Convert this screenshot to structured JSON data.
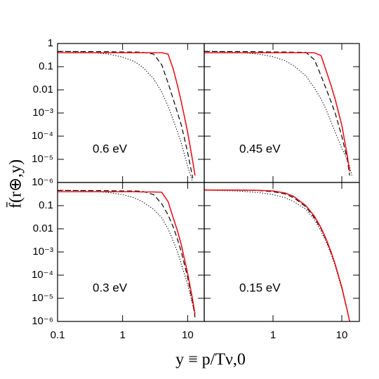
{
  "figure": {
    "xlabel": "y ≡ p/Tν,0",
    "ylabel": "f̄(r⊕,y)"
  },
  "chart_data": [
    {
      "type": "line",
      "annotation": "0.6 eV",
      "log_x": true,
      "log_y": true,
      "xlim": [
        0.1,
        18
      ],
      "ylim": [
        1e-06,
        1
      ],
      "xticks": [
        0.1,
        1,
        10
      ],
      "show_xtick_labels": false,
      "yticks": [
        1,
        0.1,
        0.01,
        {
          "value": 0.001,
          "label": "10⁻³"
        },
        {
          "value": 0.0001,
          "label": "10⁻⁴"
        },
        {
          "value": 1e-05,
          "label": "10⁻⁵"
        },
        {
          "value": 1e-06,
          "label": "10⁻⁶"
        }
      ],
      "show_ytick_labels": true,
      "x": [
        0.1,
        0.3,
        0.6,
        1,
        1.5,
        2,
        3,
        4,
        5,
        6,
        7,
        8,
        10,
        12,
        13
      ],
      "series": [
        {
          "color": "#000000",
          "style": "dotted",
          "values": [
            0.47,
            0.42,
            0.35,
            0.26,
            0.17,
            0.1,
            0.03,
            0.008,
            0.002,
            0.0005,
            0.00015,
            5e-05,
            5e-06,
            1e-06,
            null
          ]
        },
        {
          "color": "#000000",
          "style": "dashed",
          "values": [
            0.45,
            0.45,
            0.44,
            0.43,
            0.43,
            0.42,
            0.35,
            0.12,
            0.02,
            0.004,
            0.001,
            0.0003,
            2e-05,
            1.5e-06,
            null
          ]
        },
        {
          "color": "#e8141c",
          "style": "solid",
          "values": [
            0.4,
            0.4,
            0.4,
            0.4,
            0.4,
            0.4,
            0.4,
            0.4,
            0.35,
            0.08,
            0.015,
            0.003,
            0.00015,
            8e-06,
            2e-06
          ]
        }
      ]
    },
    {
      "type": "line",
      "annotation": "0.45 eV",
      "log_x": true,
      "log_y": true,
      "xlim": [
        0.1,
        18
      ],
      "ylim": [
        1e-06,
        1
      ],
      "xticks": [
        1,
        10
      ],
      "show_xtick_labels": false,
      "yticks": [
        1,
        0.1,
        0.01,
        0.001,
        0.0001,
        1e-05,
        1e-06
      ],
      "show_ytick_labels": false,
      "x": [
        0.1,
        0.3,
        0.6,
        1,
        1.5,
        2,
        3,
        4,
        5,
        6,
        7,
        8,
        10,
        12,
        13,
        14
      ],
      "series": [
        {
          "color": "#000000",
          "style": "dotted",
          "values": [
            0.47,
            0.42,
            0.35,
            0.27,
            0.18,
            0.11,
            0.04,
            0.012,
            0.004,
            0.0013,
            0.0004,
            0.00015,
            3e-05,
            1e-05,
            5e-06,
            2e-06
          ]
        },
        {
          "color": "#000000",
          "style": "dashed",
          "values": [
            0.45,
            0.45,
            0.44,
            0.43,
            0.43,
            0.42,
            0.42,
            0.2,
            0.04,
            0.01,
            0.003,
            0.001,
            0.0001,
            1e-05,
            2e-06,
            null
          ]
        },
        {
          "color": "#e8141c",
          "style": "solid",
          "values": [
            0.4,
            0.4,
            0.4,
            0.4,
            0.4,
            0.4,
            0.4,
            0.4,
            0.3,
            0.06,
            0.015,
            0.004,
            0.0003,
            1.5e-05,
            3e-06,
            null
          ]
        }
      ]
    },
    {
      "type": "line",
      "annotation": "0.3 eV",
      "log_x": true,
      "log_y": true,
      "xlim": [
        0.1,
        18
      ],
      "ylim": [
        1e-06,
        1
      ],
      "xticks": [
        0.1,
        1,
        10
      ],
      "show_xtick_labels": true,
      "yticks": [
        1,
        0.1,
        0.01,
        {
          "value": 0.001,
          "label": "10⁻³"
        },
        {
          "value": 0.0001,
          "label": "10⁻⁴"
        },
        {
          "value": 1e-05,
          "label": "10⁻⁵"
        },
        {
          "value": 1e-06,
          "label": "10⁻⁶"
        }
      ],
      "show_ytick_labels": true,
      "hide_top_ytick_label": true,
      "x": [
        0.1,
        0.3,
        0.6,
        1,
        1.5,
        2,
        3,
        4,
        5,
        6,
        7,
        8,
        10,
        12,
        13
      ],
      "series": [
        {
          "color": "#000000",
          "style": "dotted",
          "values": [
            0.47,
            0.43,
            0.37,
            0.3,
            0.22,
            0.15,
            0.07,
            0.03,
            0.01,
            0.003,
            0.001,
            0.0003,
            4e-05,
            5e-06,
            2e-06
          ]
        },
        {
          "color": "#000000",
          "style": "dashed",
          "values": [
            0.45,
            0.45,
            0.44,
            0.43,
            0.43,
            0.42,
            0.3,
            0.12,
            0.04,
            0.012,
            0.0035,
            0.001,
            8e-05,
            6e-06,
            1.5e-06
          ]
        },
        {
          "color": "#e8141c",
          "style": "solid",
          "values": [
            0.4,
            0.4,
            0.4,
            0.4,
            0.4,
            0.39,
            0.39,
            0.38,
            0.15,
            0.03,
            0.008,
            0.002,
            0.00012,
            8e-06,
            2e-06
          ]
        }
      ]
    },
    {
      "type": "line",
      "annotation": "0.15 eV",
      "log_x": true,
      "log_y": true,
      "xlim": [
        0.1,
        18
      ],
      "ylim": [
        1e-06,
        1
      ],
      "xticks": [
        1,
        10
      ],
      "show_xtick_labels": true,
      "yticks": [
        1,
        0.1,
        0.01,
        0.001,
        0.0001,
        1e-05,
        1e-06
      ],
      "show_ytick_labels": false,
      "x": [
        0.1,
        0.3,
        0.6,
        1,
        1.5,
        2,
        3,
        4,
        5,
        6,
        7,
        8,
        10,
        12,
        13
      ],
      "series": [
        {
          "color": "#000000",
          "style": "dotted",
          "values": [
            0.47,
            0.43,
            0.37,
            0.3,
            0.22,
            0.15,
            0.07,
            0.025,
            0.008,
            0.0025,
            0.0008,
            0.00025,
            2.5e-05,
            3e-06,
            1e-06
          ]
        },
        {
          "color": "#000000",
          "style": "dashed",
          "values": [
            0.48,
            0.47,
            0.45,
            0.4,
            0.32,
            0.22,
            0.09,
            0.03,
            0.01,
            0.003,
            0.0009,
            0.0003,
            3e-05,
            3e-06,
            1e-06
          ]
        },
        {
          "color": "#e8141c",
          "style": "solid",
          "values": [
            0.47,
            0.47,
            0.46,
            0.43,
            0.35,
            0.25,
            0.1,
            0.035,
            0.011,
            0.0033,
            0.001,
            0.0003,
            3e-05,
            3e-06,
            1e-06
          ]
        }
      ]
    }
  ]
}
